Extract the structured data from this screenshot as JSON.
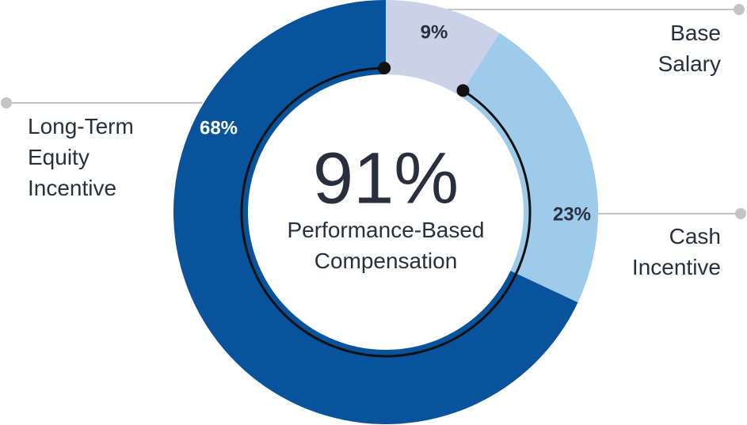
{
  "chart_data": {
    "type": "pie",
    "donut": true,
    "categories": [
      "Base Salary",
      "Cash Incentive",
      "Long-Term Equity Incentive"
    ],
    "values": [
      9,
      23,
      68
    ],
    "value_labels": [
      "9%",
      "23%",
      "68%"
    ],
    "colors": [
      "#c9d2e8",
      "#9ecbea",
      "#08539c"
    ],
    "center_value": "91%",
    "center_caption": "Performance-Based Compensation"
  }
}
